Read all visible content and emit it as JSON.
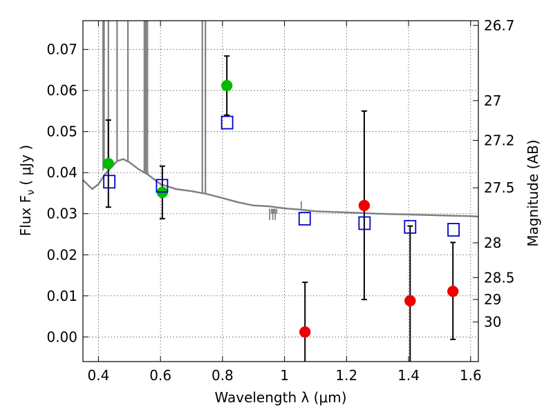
{
  "chart_data": {
    "type": "scatter",
    "xlabel": "Wavelength  λ (μm)",
    "ylabel": "Flux  F",
    "ylabel_sub": "ν",
    "ylabel_unit": "  ( μJy )",
    "y2label": "Magnitude (AB)",
    "xlim": [
      0.35,
      1.625
    ],
    "ylim": [
      -0.006,
      0.077
    ],
    "grid": true,
    "x_ticks": [
      0.4,
      0.6,
      0.8,
      1.0,
      1.2,
      1.4,
      1.6
    ],
    "x_tick_labels": [
      "0.4",
      "0.6",
      "0.8",
      "1",
      "1.2",
      "1.4",
      "1.6"
    ],
    "y_ticks": [
      0.0,
      0.01,
      0.02,
      0.03,
      0.04,
      0.05,
      0.06,
      0.07
    ],
    "y_tick_labels": [
      "0.00",
      "0.01",
      "0.02",
      "0.03",
      "0.04",
      "0.05",
      "0.06",
      "0.07"
    ],
    "y2_tick_labels": [
      "26.7",
      "27",
      "27.2",
      "27.5",
      "28",
      "28.5",
      "29",
      "30"
    ],
    "series": [
      {
        "marker": "circle",
        "color": "#00bb00",
        "x": [
          0.432,
          0.606,
          0.814
        ],
        "y": [
          0.0422,
          0.0352,
          0.0612
        ],
        "yerr_low": [
          0.0106,
          0.0064,
          0.0072
        ],
        "yerr_high": [
          0.0106,
          0.0064,
          0.0072
        ]
      },
      {
        "marker": "circle",
        "color": "#ee0000",
        "x": [
          1.066,
          1.257,
          1.405,
          1.543
        ],
        "y": [
          0.0012,
          0.032,
          0.0088,
          0.0111
        ],
        "yerr_low": [
          0.0122,
          0.0229,
          0.0168,
          0.0117
        ],
        "yerr_high": [
          0.0121,
          0.023,
          0.0182,
          0.0119
        ]
      },
      {
        "marker": "open-square",
        "color": "#0000cc",
        "x": [
          0.435,
          0.605,
          0.815,
          1.065,
          1.258,
          1.405,
          1.545
        ],
        "y": [
          0.0378,
          0.0368,
          0.0522,
          0.0288,
          0.0277,
          0.0268,
          0.0261
        ]
      }
    ],
    "model_spectrum": {
      "color": "#808080",
      "x": [
        0.35,
        0.38,
        0.4,
        0.42,
        0.44,
        0.46,
        0.48,
        0.5,
        0.53,
        0.56,
        0.6,
        0.65,
        0.7,
        0.75,
        0.8,
        0.85,
        0.9,
        0.95,
        1.0,
        1.05,
        1.1,
        1.2,
        1.3,
        1.4,
        1.5,
        1.6,
        1.625
      ],
      "y": [
        0.0382,
        0.036,
        0.0372,
        0.0395,
        0.0412,
        0.0428,
        0.0433,
        0.0425,
        0.0408,
        0.0395,
        0.0372,
        0.036,
        0.0355,
        0.0348,
        0.0338,
        0.0328,
        0.032,
        0.0318,
        0.0313,
        0.031,
        0.0306,
        0.0303,
        0.03,
        0.0298,
        0.0296,
        0.0294,
        0.0293
      ]
    }
  }
}
